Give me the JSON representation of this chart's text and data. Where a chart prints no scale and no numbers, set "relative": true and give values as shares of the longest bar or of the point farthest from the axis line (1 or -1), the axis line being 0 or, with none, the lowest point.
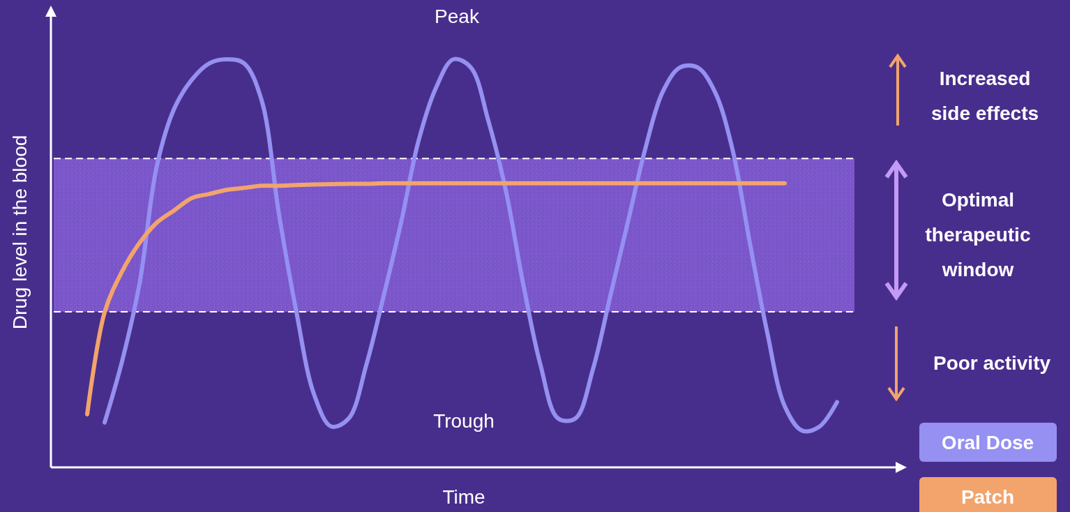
{
  "chart_data": {
    "type": "line",
    "relative": true,
    "xlabel": "Time",
    "ylabel": "Drug level in the blood",
    "categories": [
      null,
      null,
      null,
      null,
      null,
      null,
      null,
      null,
      null,
      null,
      null,
      null,
      null,
      null,
      null,
      null,
      null,
      null,
      null,
      null,
      null,
      null,
      null,
      null,
      null,
      null,
      null,
      null,
      null,
      null,
      null,
      null,
      null,
      null,
      null,
      null,
      null,
      null,
      null,
      null,
      null,
      null,
      null,
      null,
      null
    ],
    "series": [
      {
        "name": "Oral Dose",
        "color": "#9590f2",
        "values": [
          null,
          0.11,
          0.26,
          0.45,
          0.74,
          0.88,
          0.95,
          0.99,
          1.0,
          0.99,
          0.9,
          0.62,
          0.38,
          0.18,
          0.1,
          0.12,
          0.25,
          0.42,
          0.6,
          0.8,
          0.93,
          1.0,
          0.98,
          0.85,
          0.68,
          0.45,
          0.25,
          0.12,
          0.12,
          0.24,
          0.42,
          0.6,
          0.78,
          0.92,
          0.98,
          0.98,
          0.92,
          0.78,
          0.55,
          0.33,
          0.15,
          0.09,
          0.1,
          0.16,
          null
        ]
      },
      {
        "name": "Patch",
        "color": "#f2a46c",
        "values": [
          0.13,
          0.38,
          0.48,
          0.55,
          0.6,
          0.63,
          0.66,
          0.67,
          0.68,
          0.685,
          0.69,
          0.69,
          0.692,
          0.693,
          0.694,
          0.695,
          0.695,
          0.696,
          0.696,
          0.696,
          0.696,
          0.696,
          0.696,
          0.696,
          0.696,
          0.696,
          0.696,
          0.696,
          0.696,
          0.696,
          0.696,
          0.696,
          0.696,
          0.696,
          0.696,
          0.696,
          0.696,
          0.696,
          0.696,
          0.696,
          0.696,
          null,
          null,
          null,
          null
        ]
      }
    ],
    "bands": [
      {
        "axis": "y",
        "from": 0.381,
        "to": 0.757,
        "color": "#7b56cc"
      }
    ],
    "ref_lines": [
      {
        "axis": "y",
        "value": 0.757,
        "color": "#ffffff",
        "line_style": "dashed"
      },
      {
        "axis": "y",
        "value": 0.381,
        "color": "#ffffff",
        "line_style": "dashed"
      }
    ],
    "annotations": [
      "Peak",
      "Trough",
      "Increased side effects",
      "Optimal therapeutic window",
      "Poor activity"
    ],
    "legend": "bottom right"
  }
}
